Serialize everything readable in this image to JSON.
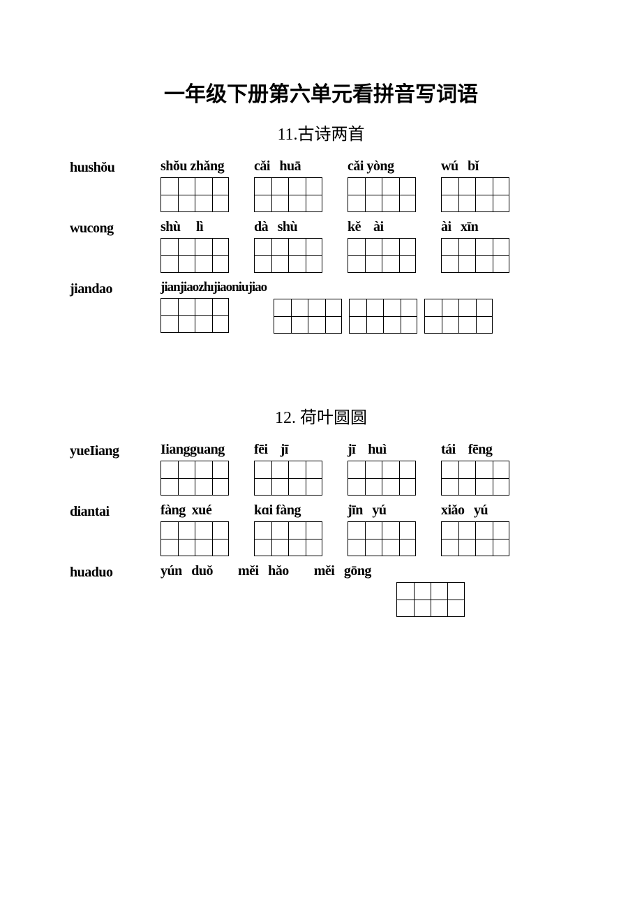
{
  "page": {
    "title": "一年级下册第六单元看拼音写词语",
    "background": "#ffffff",
    "text_color": "#000000"
  },
  "sections": [
    {
      "heading": "11.古诗两首",
      "rows": [
        {
          "label": "huıshŏu",
          "cells": [
            {
              "pinyin": "shŏu zhǎng",
              "boxes": 2
            },
            {
              "pinyin": "cǎi   huā",
              "boxes": 2
            },
            {
              "pinyin": "cǎi yòng",
              "boxes": 2
            },
            {
              "pinyin": "wú   bǐ",
              "boxes": 2
            }
          ]
        },
        {
          "label": "wucong",
          "cells": [
            {
              "pinyin": "shù     lì",
              "boxes": 2
            },
            {
              "pinyin": "dà   shù",
              "boxes": 2
            },
            {
              "pinyin": "kě    ài",
              "boxes": 2
            },
            {
              "pinyin": "ài   xīn",
              "boxes": 2
            }
          ]
        },
        {
          "label": "jiandao",
          "cells": [
            {
              "pinyin": "jianjiaozhıjiaoniujiao",
              "long": true,
              "boxes": 2
            },
            {
              "pinyin": " ",
              "boxes": 2
            },
            {
              "pinyin": " ",
              "boxes": 2
            },
            {
              "pinyin": " ",
              "boxes": 2
            }
          ]
        }
      ]
    },
    {
      "heading": "12. 荷叶圆圆",
      "rows": [
        {
          "label": "yueIiang",
          "cells": [
            {
              "pinyin": "Iiangguang",
              "boxes": 2
            },
            {
              "pinyin": "fēi    jī",
              "boxes": 2
            },
            {
              "pinyin": "jī    huì",
              "boxes": 2
            },
            {
              "pinyin": "tái    fēng",
              "boxes": 2
            }
          ]
        },
        {
          "label": "diantai",
          "cells": [
            {
              "pinyin": "fàng  xué",
              "boxes": 2
            },
            {
              "pinyin": "kɑi fàng",
              "boxes": 2
            },
            {
              "pinyin": "jīn   yú",
              "boxes": 2
            },
            {
              "pinyin": "xiǎo   yú",
              "boxes": 2
            }
          ]
        },
        {
          "label": "huaduo",
          "cells": [
            {
              "pinyin": "yún   duǒ",
              "boxes": 2,
              "nobox": true
            },
            {
              "pinyin": "měi   hǎo",
              "boxes": 2,
              "nobox": true
            },
            {
              "pinyin": "měi   gōng",
              "boxes": 2,
              "nobox": true
            },
            {
              "pinyin": " ",
              "boxes": 2
            }
          ]
        }
      ]
    }
  ]
}
